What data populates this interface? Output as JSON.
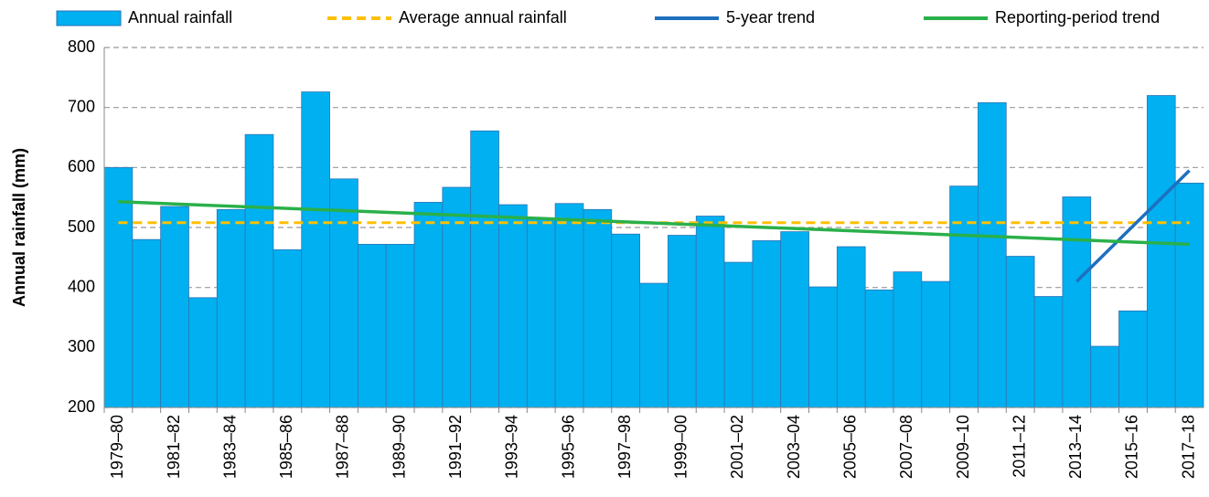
{
  "chart_data": {
    "type": "bar",
    "y_label": "Annual rainfall (mm)",
    "categories": [
      "1979–80",
      null,
      "1981–82",
      null,
      "1983–84",
      null,
      "1985–86",
      null,
      "1987–88",
      null,
      "1989–90",
      null,
      "1991–92",
      null,
      "1993–94",
      null,
      "1995–96",
      null,
      "1997–98",
      null,
      "1999–00",
      null,
      "2001–02",
      null,
      "2003–04",
      null,
      "2005–06",
      null,
      "2007–08",
      null,
      "2009–10",
      null,
      "2011–12",
      null,
      "2013–14",
      null,
      "2015–16",
      null,
      "2017–18"
    ],
    "series": [
      {
        "name": "Annual rainfall",
        "type": "bar",
        "color": "#00b0f0",
        "values": [
          600,
          480,
          535,
          383,
          530,
          655,
          463,
          726,
          581,
          472,
          472,
          542,
          567,
          661,
          538,
          515,
          540,
          530,
          489,
          407,
          487,
          519,
          442,
          478,
          493,
          401,
          468,
          396,
          426,
          410,
          569,
          708,
          452,
          385,
          551,
          302,
          361,
          720,
          574
        ]
      },
      {
        "name": "Average annual rainfall",
        "type": "line",
        "dashed": true,
        "color": "#ffc000",
        "values": [
          508,
          508,
          508,
          508,
          508,
          508,
          508,
          508,
          508,
          508,
          508,
          508,
          508,
          508,
          508,
          508,
          508,
          508,
          508,
          508,
          508,
          508,
          508,
          508,
          508,
          508,
          508,
          508,
          508,
          508,
          508,
          508,
          508,
          508,
          508,
          508,
          508,
          508,
          508
        ]
      },
      {
        "name": "5-year trend",
        "type": "line",
        "dashed": false,
        "color": "#1f6fbf",
        "values": [
          null,
          null,
          null,
          null,
          null,
          null,
          null,
          null,
          null,
          null,
          null,
          null,
          null,
          null,
          null,
          null,
          null,
          null,
          null,
          null,
          null,
          null,
          null,
          null,
          null,
          null,
          null,
          null,
          null,
          null,
          null,
          null,
          null,
          null,
          410,
          456.3,
          502.5,
          548.8,
          595
        ]
      },
      {
        "name": "Reporting-period trend",
        "type": "line",
        "dashed": false,
        "color": "#2ab04a",
        "values": [
          543,
          541.1,
          539.3,
          537.4,
          535.5,
          533.7,
          531.8,
          529.9,
          528.1,
          526.2,
          524.3,
          522.5,
          520.6,
          518.7,
          516.8,
          515.0,
          513.1,
          511.2,
          509.4,
          507.5,
          505.6,
          503.8,
          501.9,
          500.0,
          498.2,
          496.3,
          494.4,
          492.6,
          490.7,
          488.8,
          486.9,
          485.1,
          483.2,
          481.3,
          479.5,
          477.6,
          475.7,
          473.9,
          472.0
        ]
      }
    ],
    "ylim": [
      200,
      800
    ],
    "yticks": [
      200,
      300,
      400,
      500,
      600,
      700,
      800
    ],
    "grid": true
  }
}
